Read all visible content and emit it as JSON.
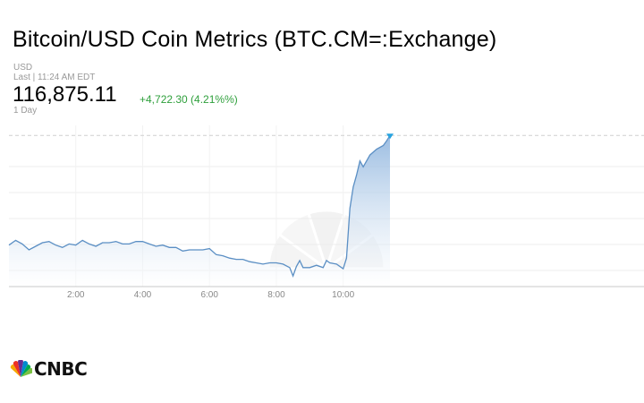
{
  "header": {
    "title": "Bitcoin/USD Coin Metrics (BTC.CM=:Exchange)",
    "currency": "USD",
    "last_updated": "Last | 11:24 AM EDT",
    "price": "116,875.11",
    "change": "+4,722.30 (4.21%%)",
    "range": "1 Day"
  },
  "colors": {
    "line": "#5b8fc4",
    "area_top": "#8fb5de",
    "area_bottom": "#ffffff",
    "positive": "#2e9f3b",
    "marker": "#27a3e0"
  },
  "brand": {
    "logo_text": "CNBC",
    "logo_icon": "peacock-icon"
  },
  "chart_data": {
    "type": "area",
    "title": "",
    "xlabel": "",
    "ylabel": "",
    "xlim": [
      0.0,
      19.0
    ],
    "ylim": [
      110500,
      117300
    ],
    "grid": true,
    "x_tick_labels": [
      "2:00",
      "4:00",
      "6:00",
      "8:00",
      "10:00"
    ],
    "x_tick_values": [
      2,
      4,
      6,
      8,
      10
    ],
    "reference_line": 116875.11,
    "series": [
      {
        "x": [
          0.0,
          0.2,
          0.4,
          0.6,
          0.8,
          1.0,
          1.2,
          1.4,
          1.6,
          1.8,
          2.0,
          2.2,
          2.4,
          2.6,
          2.8,
          3.0,
          3.2,
          3.4,
          3.6,
          3.8,
          4.0,
          4.2,
          4.4,
          4.6,
          4.8,
          5.0,
          5.2,
          5.4,
          5.6,
          5.8,
          6.0,
          6.2,
          6.4,
          6.6,
          6.8,
          7.0,
          7.2,
          7.4,
          7.6,
          7.8,
          8.0,
          8.2,
          8.4,
          8.5,
          8.6,
          8.7,
          8.8,
          9.0,
          9.2,
          9.4,
          9.5,
          9.6,
          9.8,
          10.0,
          10.1,
          10.2,
          10.3,
          10.4,
          10.5,
          10.6,
          10.8,
          11.0,
          11.2,
          11.3,
          11.4
        ],
        "y": [
          112250,
          112450,
          112300,
          112050,
          112200,
          112350,
          112400,
          112250,
          112150,
          112300,
          112250,
          112450,
          112300,
          112200,
          112350,
          112350,
          112400,
          112300,
          112300,
          112400,
          112400,
          112300,
          112200,
          112250,
          112150,
          112150,
          112000,
          112050,
          112050,
          112050,
          112100,
          111850,
          111800,
          111700,
          111650,
          111650,
          111550,
          111500,
          111450,
          111500,
          111500,
          111450,
          111300,
          110950,
          111350,
          111600,
          111300,
          111300,
          111400,
          111300,
          111600,
          111500,
          111450,
          111250,
          111700,
          113800,
          114700,
          115200,
          115800,
          115550,
          116050,
          116300,
          116450,
          116650,
          116875.11
        ]
      }
    ]
  }
}
